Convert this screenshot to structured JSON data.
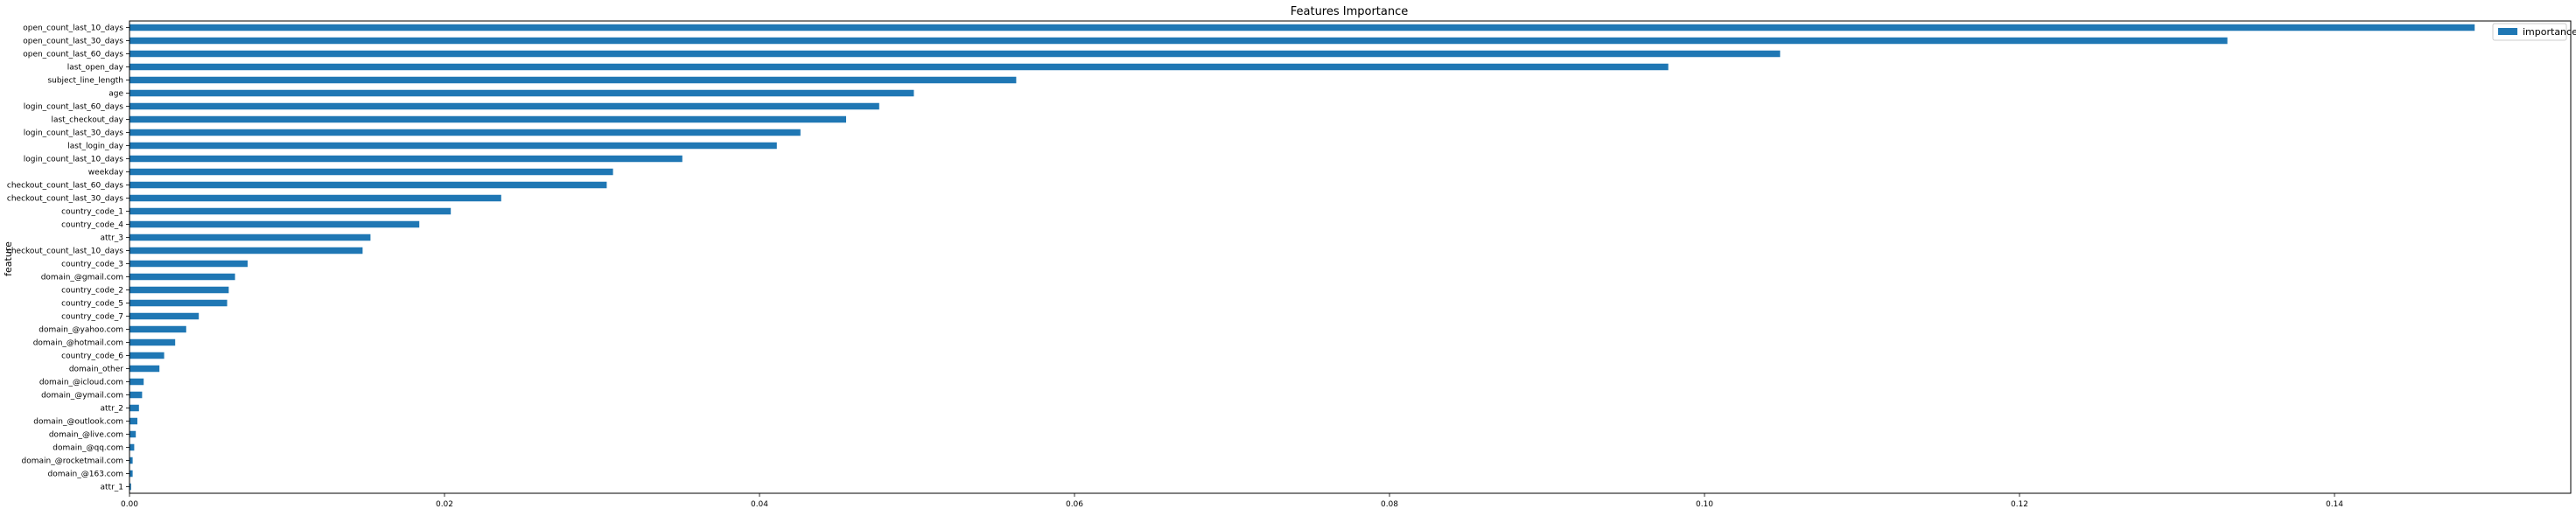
{
  "chart_data": {
    "type": "bar",
    "orientation": "horizontal",
    "title": "Features Importance",
    "ylabel": "feature",
    "xlabel": "",
    "xlim": [
      0,
      0.155
    ],
    "xticks": [
      "0.00",
      "0.02",
      "0.04",
      "0.06",
      "0.08",
      "0.10",
      "0.12",
      "0.14"
    ],
    "xtick_values": [
      0,
      0.02,
      0.04,
      0.06,
      0.08,
      0.1,
      0.12,
      0.14
    ],
    "grid": false,
    "legend_position": "top-right",
    "series": [
      {
        "name": "importance",
        "color": "#1f77b4"
      }
    ],
    "categories": [
      "open_count_last_10_days",
      "open_count_last_30_days",
      "open_count_last_60_days",
      "last_open_day",
      "subject_line_length",
      "age",
      "login_count_last_60_days",
      "last_checkout_day",
      "login_count_last_30_days",
      "last_login_day",
      "login_count_last_10_days",
      "weekday",
      "checkout_count_last_60_days",
      "checkout_count_last_30_days",
      "country_code_1",
      "country_code_4",
      "attr_3",
      "checkout_count_last_10_days",
      "country_code_3",
      "domain_@gmail.com",
      "country_code_2",
      "country_code_5",
      "country_code_7",
      "domain_@yahoo.com",
      "domain_@hotmail.com",
      "country_code_6",
      "domain_other",
      "domain_@icloud.com",
      "domain_@ymail.com",
      "attr_2",
      "domain_@outlook.com",
      "domain_@live.com",
      "domain_@qq.com",
      "domain_@rocketmail.com",
      "domain_@163.com",
      "attr_1"
    ],
    "values": [
      0.1489,
      0.1332,
      0.1048,
      0.0977,
      0.0563,
      0.0498,
      0.0476,
      0.0455,
      0.0426,
      0.0411,
      0.0351,
      0.0307,
      0.0303,
      0.0236,
      0.0204,
      0.0184,
      0.0153,
      0.0148,
      0.0075,
      0.0067,
      0.0063,
      0.0062,
      0.0044,
      0.0036,
      0.0029,
      0.0022,
      0.0019,
      0.0009,
      0.0008,
      0.0006,
      0.0005,
      0.0004,
      0.0003,
      0.0002,
      0.0002,
      0.0001
    ]
  }
}
